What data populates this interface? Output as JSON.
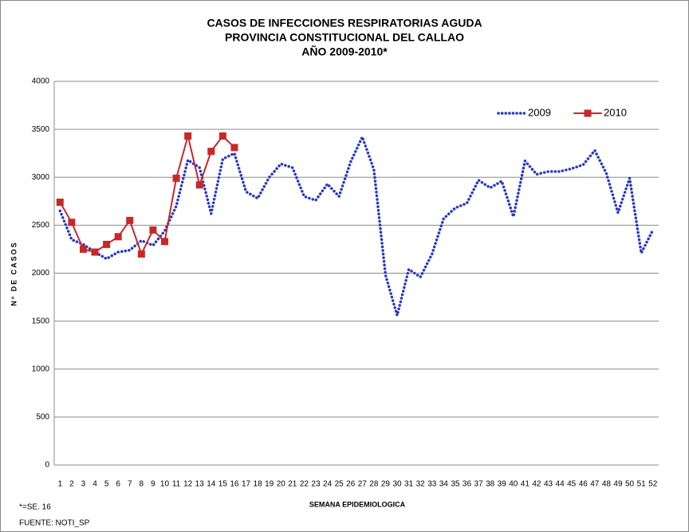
{
  "chart_data": {
    "type": "line",
    "title": [
      "CASOS DE INFECCIONES RESPIRATORIAS AGUDA",
      "PROVINCIA CONSTITUCIONAL DEL CALLAO",
      "AÑO 2009-2010*"
    ],
    "x_label": "SEMANA EPIDEMIOLOGICA",
    "y_label": "Nº DE CASOS",
    "annotations": [
      "*=SE. 16",
      "FUENTE: NOTI_SP"
    ],
    "categories": [
      1,
      2,
      3,
      4,
      5,
      6,
      7,
      8,
      9,
      10,
      11,
      12,
      13,
      14,
      15,
      16,
      17,
      18,
      19,
      20,
      21,
      22,
      23,
      24,
      25,
      26,
      27,
      28,
      29,
      30,
      31,
      32,
      33,
      34,
      35,
      36,
      37,
      38,
      39,
      40,
      41,
      42,
      43,
      44,
      45,
      46,
      47,
      48,
      49,
      50,
      51,
      52
    ],
    "series": [
      {
        "name": "2009",
        "color": "#2636c8",
        "style": "dotted",
        "values": [
          2650,
          2350,
          2300,
          2220,
          2150,
          2220,
          2240,
          2340,
          2290,
          2440,
          2700,
          3180,
          3100,
          2620,
          3190,
          3250,
          2850,
          2780,
          3000,
          3140,
          3100,
          2800,
          2760,
          2930,
          2800,
          3160,
          3420,
          3080,
          1980,
          1560,
          2040,
          1960,
          2200,
          2570,
          2680,
          2730,
          2970,
          2890,
          2960,
          2590,
          3170,
          3030,
          3060,
          3060,
          3090,
          3130,
          3280,
          3040,
          2630,
          2990,
          2210,
          2450
        ]
      },
      {
        "name": "2010",
        "color": "#c82828",
        "style": "solid-square",
        "values": [
          2740,
          2530,
          2250,
          2220,
          2300,
          2380,
          2550,
          2200,
          2450,
          2330,
          2990,
          3430,
          2920,
          3270,
          3430,
          3310,
          null,
          null,
          null,
          null,
          null,
          null,
          null,
          null,
          null,
          null,
          null,
          null,
          null,
          null,
          null,
          null,
          null,
          null,
          null,
          null,
          null,
          null,
          null,
          null,
          null,
          null,
          null,
          null,
          null,
          null,
          null,
          null,
          null,
          null,
          null,
          null
        ]
      }
    ],
    "ylim": [
      0,
      4000
    ],
    "yticks": [
      0,
      500,
      1000,
      1500,
      2000,
      2500,
      3000,
      3500,
      4000
    ],
    "grid": true,
    "legend": "top-right"
  }
}
